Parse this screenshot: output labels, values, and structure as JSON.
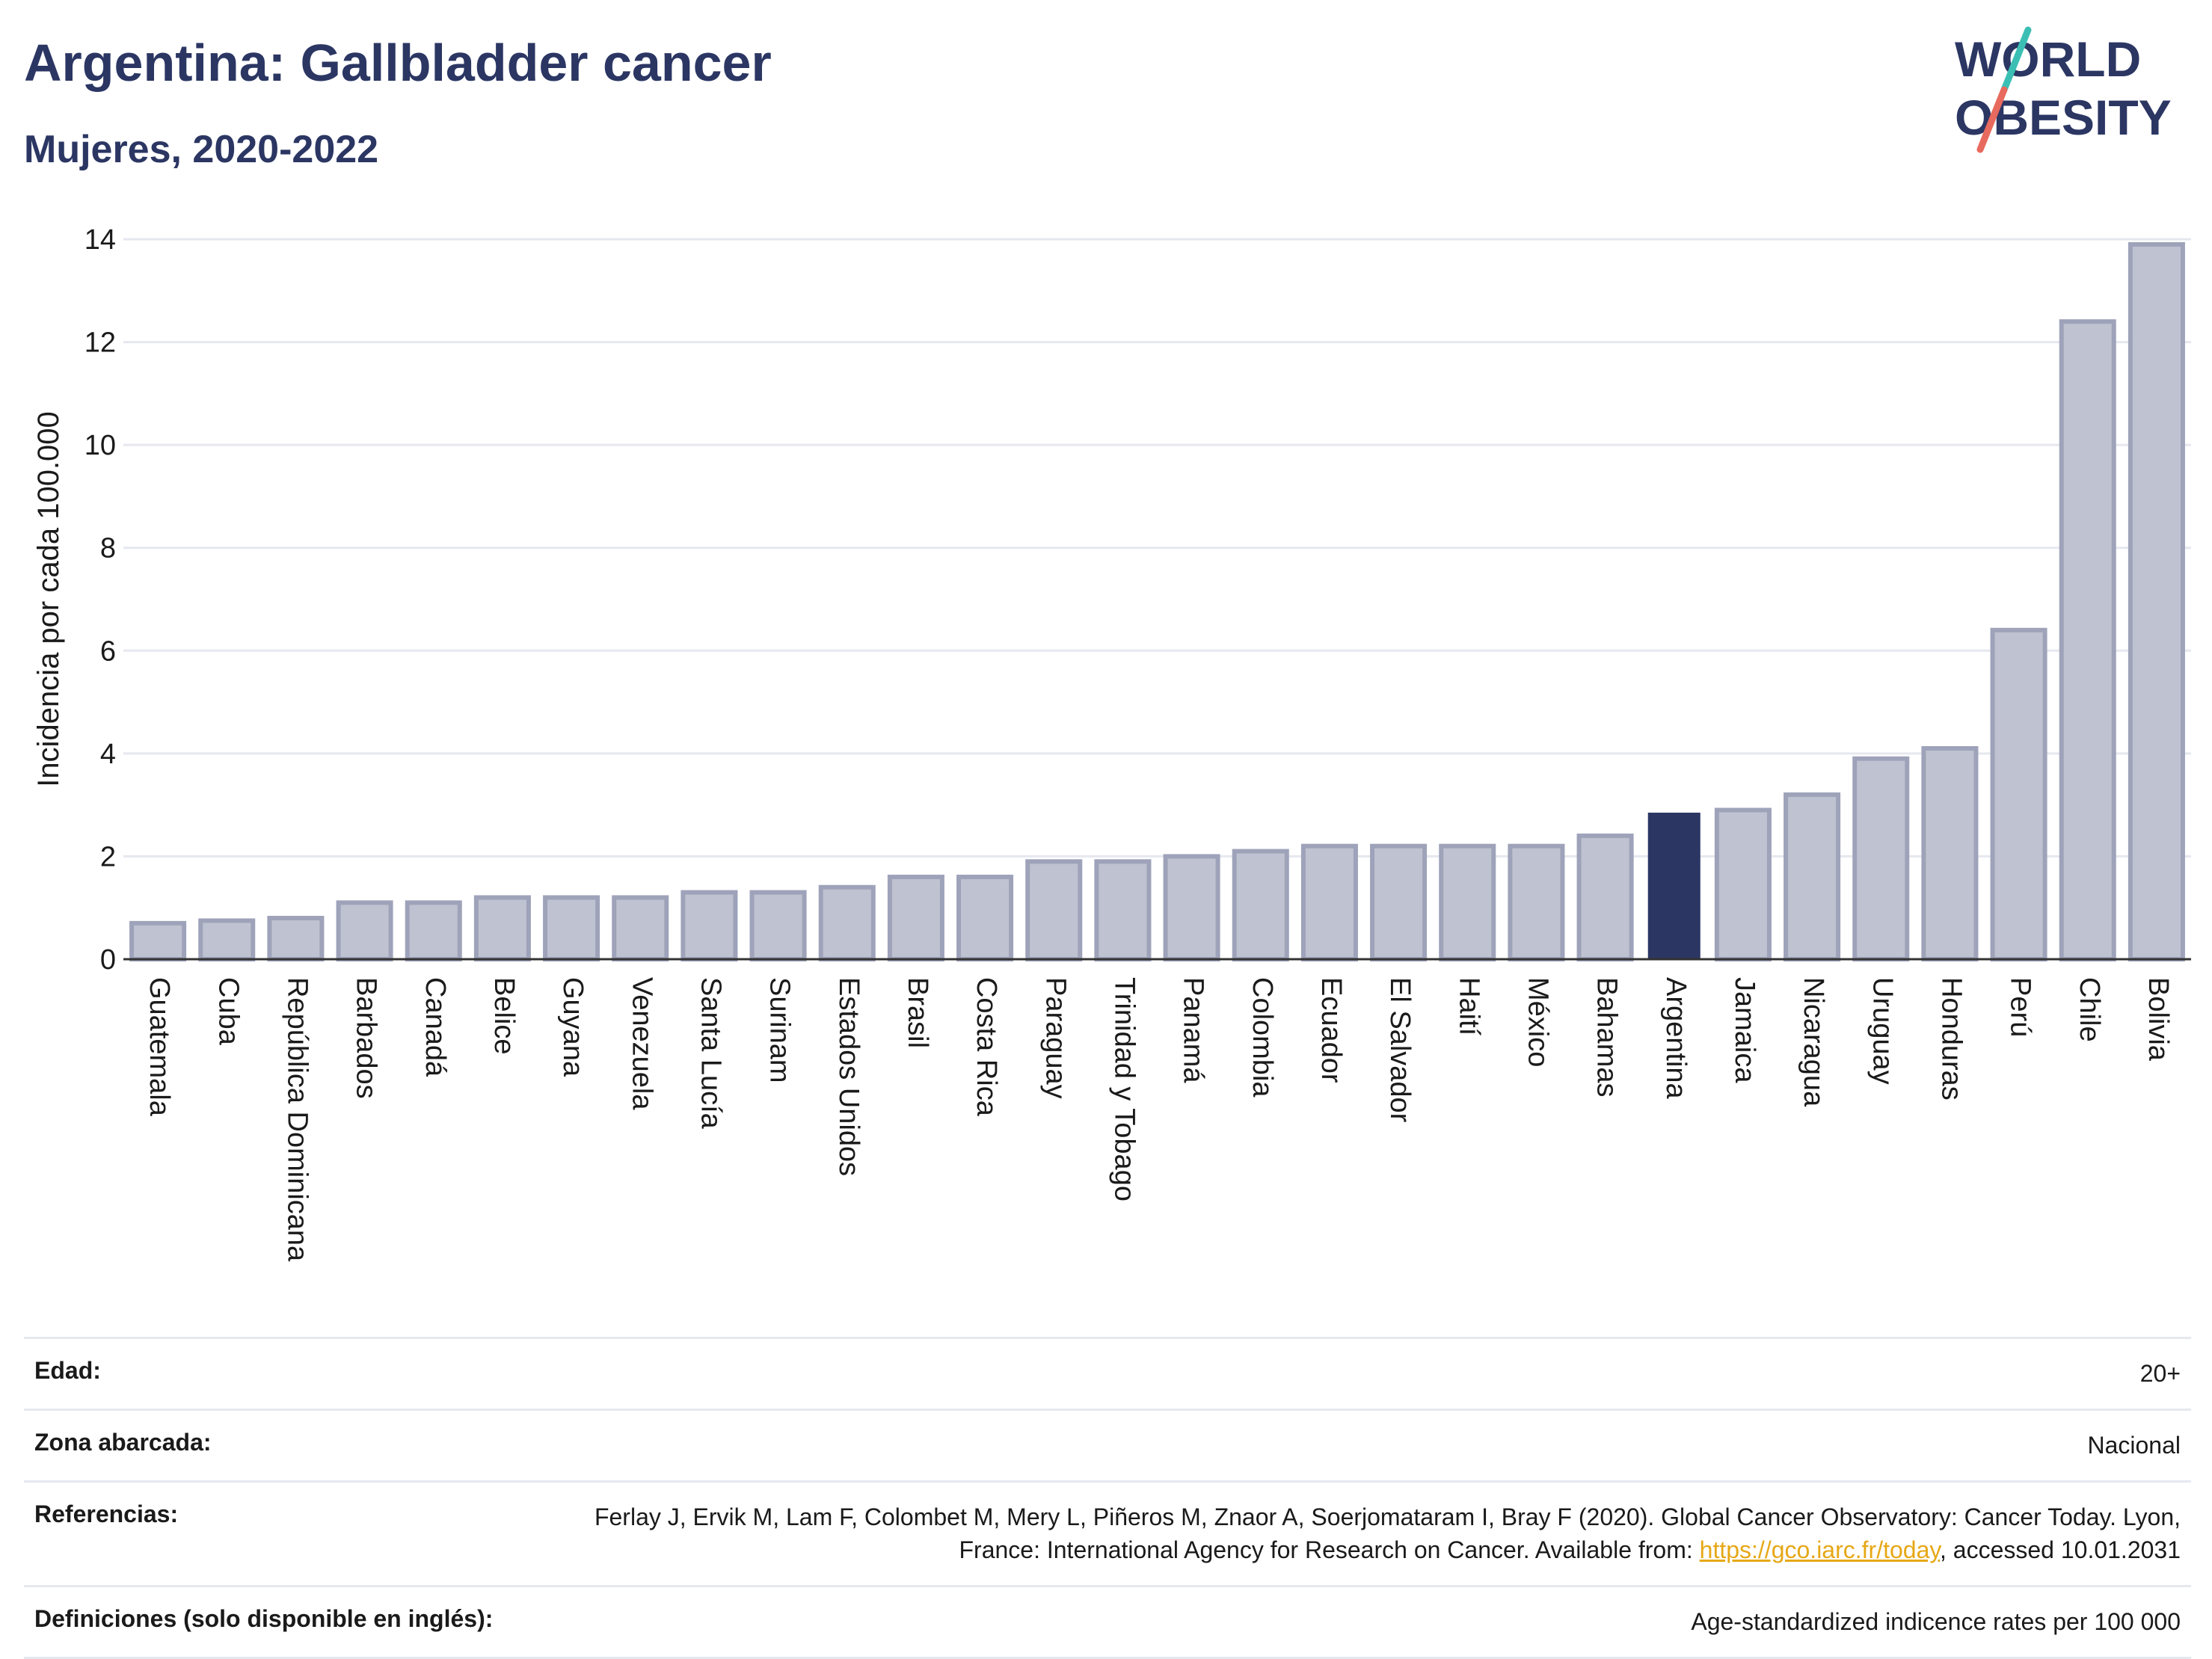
{
  "header": {
    "title": "Argentina: Gallbladder cancer",
    "subtitle": "Mujeres, 2020-2022"
  },
  "logo": {
    "line1": "WORLD",
    "line2": "OBESITY",
    "text_color": "#2b3663",
    "slash_colors": [
      "#3bbfb4",
      "#e8695d"
    ]
  },
  "chart_data": {
    "type": "bar",
    "title": "",
    "xlabel": "",
    "ylabel": "Incidencia por cada 100.000",
    "ylim": [
      0,
      14
    ],
    "yticks": [
      0,
      2,
      4,
      6,
      8,
      10,
      12,
      14
    ],
    "grid": true,
    "highlight": "Argentina",
    "colors": {
      "bar": "#bfc2d0",
      "bar_edge": "#9ea3ba",
      "highlight": "#2b3663",
      "grid": "#e6e8ef",
      "axis": "#333333"
    },
    "categories": [
      "Guatemala",
      "Cuba",
      "República Dominicana",
      "Barbados",
      "Canadá",
      "Belice",
      "Guyana",
      "Venezuela",
      "Santa Lucía",
      "Surinam",
      "Estados Unidos",
      "Brasil",
      "Costa Rica",
      "Paraguay",
      "Trinidad y Tobago",
      "Panamá",
      "Colombia",
      "Ecuador",
      "El Salvador",
      "Haití",
      "México",
      "Bahamas",
      "Argentina",
      "Jamaica",
      "Nicaragua",
      "Uruguay",
      "Honduras",
      "Perú",
      "Chile",
      "Bolivia"
    ],
    "values": [
      0.7,
      0.75,
      0.8,
      1.1,
      1.1,
      1.2,
      1.2,
      1.2,
      1.3,
      1.3,
      1.4,
      1.6,
      1.6,
      1.9,
      1.9,
      2.0,
      2.1,
      2.2,
      2.2,
      2.2,
      2.2,
      2.4,
      2.85,
      2.9,
      3.2,
      3.9,
      4.1,
      6.4,
      12.4,
      13.9
    ]
  },
  "info": [
    {
      "label": "Edad:",
      "value": "20+"
    },
    {
      "label": "Zona abarcada:",
      "value": "Nacional"
    },
    {
      "label": "Referencias:",
      "value_pre": "Ferlay J, Ervik M, Lam F, Colombet M, Mery L, Piñeros M, Znaor A, Soerjomataram I, Bray F (2020). Global Cancer Observatory: Cancer Today. Lyon, France: International Agency for Research on Cancer. Available from: ",
      "link": "https://gco.iarc.fr/today",
      "value_post": ", accessed 10.01.2031"
    },
    {
      "label": "Definiciones (solo disponible en inglés):",
      "value": "Age-standardized indicence rates per 100 000"
    }
  ]
}
